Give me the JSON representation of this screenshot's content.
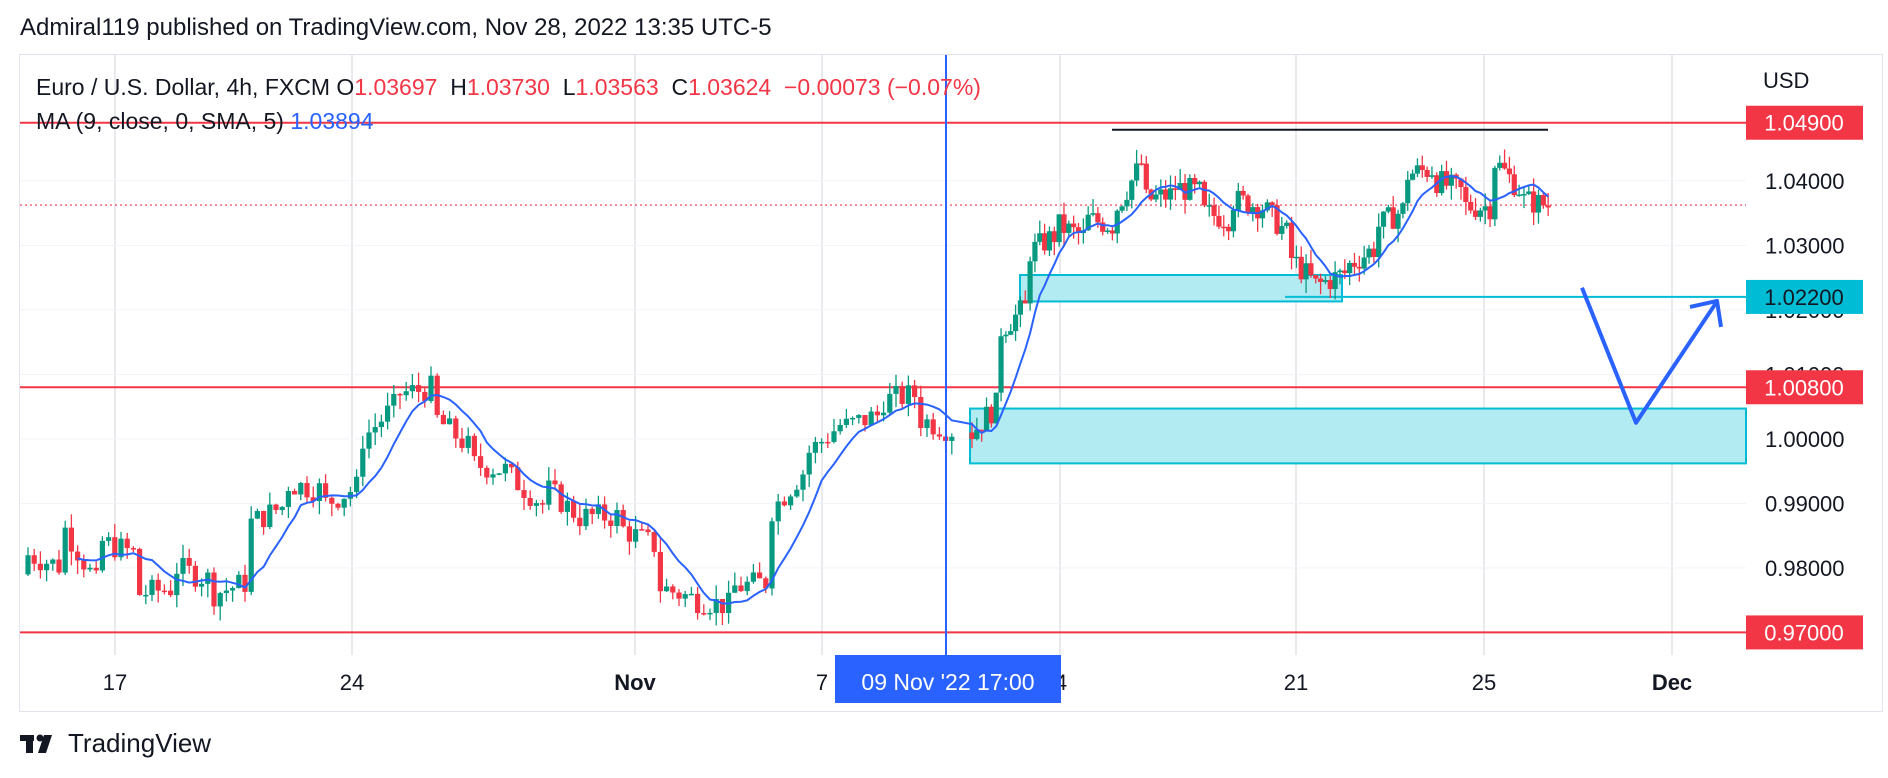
{
  "header": {
    "publisher_line": "Admiral119 published on TradingView.com, Nov 28, 2022 13:35 UTC-5"
  },
  "legend": {
    "symbol": "Euro / U.S. Dollar, 4h, FXCM",
    "open_label": "O",
    "open": "1.03697",
    "high_label": "H",
    "high": "1.03730",
    "low_label": "L",
    "low": "1.03563",
    "close_label": "C",
    "close": "1.03624",
    "change": "−0.00073 (−0.07%)",
    "ma_label": "MA (9, close, 0, SMA, 5)",
    "ma_value": "1.03894"
  },
  "footer": {
    "brand": "TradingView"
  },
  "colors": {
    "up": "#089981",
    "down": "#f23645",
    "ma": "#2962ff",
    "zone_fill": "#b2ebf2",
    "zone_border": "#00bcd4",
    "level": "#f23645",
    "grid": "#f0f3fa",
    "axis_text": "#131722"
  },
  "chart_data": {
    "type": "candlestick",
    "timeframe": "4h",
    "y_axis": {
      "currency": "USD",
      "ylim": [
        0.9665,
        1.0595
      ],
      "ticks": [
        "1.04000",
        "1.03000",
        "1.02000",
        "1.01000",
        "1.00000",
        "0.99000",
        "0.98000"
      ]
    },
    "x_axis": {
      "ticks": [
        "17",
        "24",
        "Nov",
        "7",
        "14",
        "21",
        "25",
        "Dec"
      ],
      "crosshair_label": "09 Nov '22   17:00"
    },
    "price_levels": [
      {
        "label": "1.04900",
        "value": 1.049,
        "type": "resistance"
      },
      {
        "label": "1.02200",
        "value": 1.022,
        "type": "zone-line"
      },
      {
        "label": "1.00800",
        "value": 1.008,
        "type": "support"
      },
      {
        "label": "0.97000",
        "value": 0.97,
        "type": "support"
      }
    ],
    "current_price": 1.03624,
    "zones": [
      {
        "name": "demand-zone-upper",
        "from": 1.0213,
        "to": 1.0254
      },
      {
        "name": "demand-zone-lower",
        "from": 0.9962,
        "to": 1.0047
      }
    ],
    "projection": [
      1.0225,
      1.0025,
      1.022
    ],
    "swing_segments": [
      [
        [
          0.982,
          0.98
        ],
        [
          0.986,
          0.976
        ],
        [
          0.984,
          0.982
        ],
        [
          0.976,
          0.977
        ],
        [
          0.98,
          0.978
        ],
        [
          0.976,
          0.978
        ],
        [
          0.987,
          0.99
        ],
        [
          0.993,
          0.992
        ],
        [
          0.99,
          0.993
        ],
        [
          1.0,
          1.006
        ],
        [
          1.007,
          1.008
        ],
        [
          1.003,
          0.998
        ],
        [
          0.996,
          0.995
        ],
        [
          0.994,
          0.989
        ],
        [
          0.992,
          0.987
        ],
        [
          0.988,
          0.988
        ],
        [
          0.986,
          0.983
        ],
        [
          0.977,
          0.975
        ],
        [
          0.975,
          0.974
        ],
        [
          0.977,
          0.978
        ],
        [
          0.989,
          0.996
        ],
        [
          0.998,
          1.003
        ],
        [
          1.002,
          1.004
        ],
        [
          1.006,
          1.007
        ],
        [
          1.003,
          1.001
        ]
      ],
      [
        [
          1.001,
          1.006
        ],
        [
          1.017,
          1.021
        ],
        [
          1.029,
          1.032
        ],
        [
          1.033,
          1.031
        ],
        [
          1.034,
          1.033
        ],
        [
          1.036,
          1.044
        ],
        [
          1.037,
          1.038
        ],
        [
          1.039,
          1.038
        ],
        [
          1.035,
          1.034
        ],
        [
          1.037,
          1.036
        ],
        [
          1.036,
          1.031
        ],
        [
          1.028,
          1.023
        ],
        [
          1.024,
          1.026
        ],
        [
          1.027,
          1.03
        ],
        [
          1.033,
          1.036
        ],
        [
          1.041,
          1.042
        ],
        [
          1.04,
          1.038
        ],
        [
          1.036,
          1.036
        ],
        [
          1.043,
          1.038
        ],
        [
          1.037,
          1.036
        ]
      ]
    ],
    "resistance_line": {
      "value": 1.049
    }
  }
}
